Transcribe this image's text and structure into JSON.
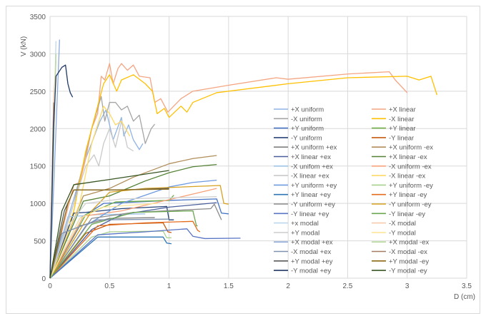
{
  "chart_data": {
    "type": "line",
    "title": "",
    "xlabel": "D (cm)",
    "ylabel": "V (kN)",
    "xlim": [
      0,
      3.5
    ],
    "ylim": [
      0,
      3500
    ],
    "xticks": [
      "0",
      "0.5",
      "1",
      "1.5",
      "2",
      "2.5",
      "3",
      "3.5"
    ],
    "yticks": [
      "0",
      "500",
      "1000",
      "1500",
      "2000",
      "2500",
      "3000",
      "3500"
    ],
    "grid": true,
    "legend_position": "right-inside",
    "series": [
      {
        "name": "+X uniform",
        "color": "#8fb4e3",
        "points": [
          [
            0,
            0
          ],
          [
            0.15,
            800
          ],
          [
            0.3,
            1600
          ],
          [
            0.42,
            2100
          ],
          [
            0.47,
            2250
          ],
          [
            0.53,
            1850
          ],
          [
            0.6,
            2150
          ],
          [
            0.62,
            1900
          ],
          [
            0.66,
            2050
          ],
          [
            0.7,
            1850
          ],
          [
            0.75,
            1720
          ],
          [
            0.78,
            1800
          ]
        ]
      },
      {
        "name": "+X linear",
        "color": "#f4a582",
        "points": [
          [
            0,
            0
          ],
          [
            0.2,
            1250
          ],
          [
            0.25,
            1280
          ],
          [
            0.3,
            1600
          ],
          [
            0.35,
            2000
          ],
          [
            0.4,
            2200
          ],
          [
            0.43,
            2700
          ],
          [
            0.46,
            2650
          ],
          [
            0.5,
            2870
          ],
          [
            0.53,
            2600
          ],
          [
            0.57,
            2800
          ],
          [
            0.6,
            2870
          ],
          [
            0.65,
            2780
          ],
          [
            0.7,
            2850
          ],
          [
            0.75,
            2700
          ],
          [
            0.84,
            2680
          ],
          [
            0.88,
            2350
          ],
          [
            0.93,
            2400
          ],
          [
            0.99,
            2220
          ],
          [
            1.1,
            2400
          ],
          [
            1.2,
            2500
          ],
          [
            1.5,
            2580
          ],
          [
            1.9,
            2680
          ],
          [
            2.0,
            2660
          ],
          [
            2.5,
            2730
          ],
          [
            2.85,
            2760
          ],
          [
            2.9,
            2650
          ],
          [
            3.0,
            2480
          ]
        ]
      },
      {
        "name": "-X uniform",
        "color": "#a5a5a5",
        "points": [
          [
            0,
            0
          ],
          [
            0.2,
            1000
          ],
          [
            0.35,
            2000
          ],
          [
            0.43,
            2430
          ],
          [
            0.46,
            2100
          ],
          [
            0.5,
            2350
          ],
          [
            0.55,
            2350
          ],
          [
            0.6,
            2250
          ],
          [
            0.65,
            2300
          ],
          [
            0.7,
            2100
          ],
          [
            0.75,
            2180
          ],
          [
            0.8,
            1800
          ],
          [
            0.85,
            2000
          ],
          [
            0.88,
            2060
          ]
        ]
      },
      {
        "name": "-X linear",
        "color": "#ffc000",
        "points": [
          [
            0,
            0
          ],
          [
            0.2,
            900
          ],
          [
            0.3,
            1700
          ],
          [
            0.4,
            2300
          ],
          [
            0.45,
            2600
          ],
          [
            0.5,
            2720
          ],
          [
            0.56,
            2500
          ],
          [
            0.6,
            2650
          ],
          [
            0.7,
            2720
          ],
          [
            0.8,
            2600
          ],
          [
            0.86,
            2500
          ],
          [
            0.9,
            2200
          ],
          [
            0.96,
            2270
          ],
          [
            1.0,
            2150
          ],
          [
            1.1,
            2300
          ],
          [
            1.15,
            2220
          ],
          [
            1.2,
            2350
          ],
          [
            1.4,
            2480
          ],
          [
            2.0,
            2600
          ],
          [
            2.5,
            2680
          ],
          [
            3.0,
            2700
          ],
          [
            3.1,
            2650
          ],
          [
            3.2,
            2700
          ],
          [
            3.25,
            2450
          ]
        ]
      },
      {
        "name": "+Y uniform",
        "color": "#4472c4",
        "points": [
          [
            0,
            0
          ],
          [
            0.25,
            800
          ],
          [
            0.45,
            1000
          ],
          [
            0.6,
            1010
          ],
          [
            1.0,
            1040
          ],
          [
            1.4,
            1060
          ],
          [
            1.44,
            870
          ],
          [
            1.5,
            860
          ]
        ]
      },
      {
        "name": "+Y linear",
        "color": "#70ad47",
        "points": [
          [
            0,
            0
          ],
          [
            0.3,
            850
          ],
          [
            0.55,
            1020
          ],
          [
            1.0,
            1040
          ],
          [
            1.04,
            1110
          ]
        ]
      },
      {
        "name": "-Y uniform",
        "color": "#264478",
        "points": [
          [
            0,
            0
          ],
          [
            0.2,
            870
          ],
          [
            0.3,
            880
          ],
          [
            0.6,
            930
          ],
          [
            0.98,
            960
          ],
          [
            1.0,
            780
          ],
          [
            1.04,
            780
          ]
        ]
      },
      {
        "name": "-Y linear",
        "color": "#c55a11",
        "points": [
          [
            0,
            0
          ],
          [
            0.3,
            600
          ],
          [
            0.5,
            720
          ],
          [
            0.95,
            740
          ],
          [
            0.99,
            620
          ],
          [
            1.02,
            610
          ]
        ]
      },
      {
        "name": "+X uniform +ex",
        "color": "#7f7f7f",
        "points": [
          [
            0,
            0
          ],
          [
            0.25,
            700
          ],
          [
            0.5,
            800
          ],
          [
            0.88,
            810
          ]
        ]
      },
      {
        "name": "+X uniform -ex",
        "color": "#b08e5a",
        "points": [
          [
            0,
            0
          ],
          [
            0.28,
            1100
          ],
          [
            0.5,
            1200
          ],
          [
            0.7,
            1350
          ],
          [
            1.0,
            1530
          ],
          [
            1.2,
            1600
          ],
          [
            1.4,
            1640
          ]
        ]
      },
      {
        "name": "+X linear +ex",
        "color": "#4a5f9d",
        "points": [
          [
            0,
            0
          ],
          [
            0.35,
            650
          ],
          [
            0.6,
            850
          ],
          [
            1.0,
            950
          ],
          [
            1.4,
            1010
          ]
        ]
      },
      {
        "name": "+X linear -ex",
        "color": "#548235",
        "points": [
          [
            0,
            0
          ],
          [
            0.28,
            1030
          ],
          [
            0.5,
            1100
          ],
          [
            0.8,
            1300
          ],
          [
            1.0,
            1410
          ],
          [
            1.2,
            1490
          ],
          [
            1.4,
            1520
          ]
        ]
      },
      {
        "name": "-X unifom +ex",
        "color": "#9dc3e6",
        "points": [
          [
            0,
            0
          ],
          [
            0.15,
            820
          ],
          [
            0.4,
            850
          ],
          [
            0.8,
            860
          ]
        ]
      },
      {
        "name": "-X uniform -ex",
        "color": "#f8a27a",
        "points": [
          [
            0,
            0
          ],
          [
            0.28,
            830
          ],
          [
            0.6,
            900
          ],
          [
            1.0,
            1050
          ],
          [
            1.4,
            1200
          ]
        ]
      },
      {
        "name": "-X linear +ex",
        "color": "#c9c9c9",
        "points": [
          [
            0,
            0
          ],
          [
            0.2,
            1000
          ],
          [
            0.3,
            1500
          ],
          [
            0.37,
            1650
          ],
          [
            0.41,
            1500
          ],
          [
            0.45,
            1800
          ],
          [
            0.5,
            2000
          ],
          [
            0.55,
            1750
          ],
          [
            0.6,
            2100
          ],
          [
            0.65,
            1750
          ],
          [
            0.7,
            1700
          ]
        ]
      },
      {
        "name": "-X linear -ex",
        "color": "#ffd966",
        "points": [
          [
            0,
            0
          ],
          [
            0.25,
            1000
          ],
          [
            0.35,
            1800
          ],
          [
            0.45,
            2300
          ],
          [
            0.5,
            2200
          ],
          [
            0.55,
            2050
          ],
          [
            0.6,
            2100
          ],
          [
            0.67,
            1900
          ]
        ]
      },
      {
        "name": "+Y uniform +ey",
        "color": "#6f9be0",
        "points": [
          [
            0,
            0
          ],
          [
            0.3,
            700
          ],
          [
            0.6,
            1000
          ],
          [
            1.0,
            1220
          ],
          [
            1.2,
            1280
          ],
          [
            1.4,
            1310
          ]
        ]
      },
      {
        "name": "+Y uniform -ey",
        "color": "#a9d18e",
        "points": [
          [
            0,
            0
          ],
          [
            0.35,
            550
          ],
          [
            0.5,
            620
          ],
          [
            0.95,
            630
          ],
          [
            0.98,
            540
          ],
          [
            1.02,
            540
          ]
        ]
      },
      {
        "name": "+Y linear +ey",
        "color": "#2e75b6",
        "points": [
          [
            0,
            0
          ],
          [
            0.4,
            550
          ],
          [
            0.95,
            550
          ],
          [
            0.98,
            470
          ],
          [
            1.02,
            460
          ]
        ]
      },
      {
        "name": "+Y linear -ey",
        "color": "#e46c1f",
        "points": [
          [
            0,
            0
          ],
          [
            0.4,
            700
          ],
          [
            0.8,
            740
          ],
          [
            1.2,
            760
          ],
          [
            1.24,
            640
          ],
          [
            1.26,
            620
          ]
        ]
      },
      {
        "name": "-Y uniform +ey",
        "color": "#8c8c8c",
        "points": [
          [
            0,
            0
          ],
          [
            0.35,
            800
          ],
          [
            0.7,
            880
          ],
          [
            1.35,
            930
          ],
          [
            1.38,
            990
          ],
          [
            1.44,
            780
          ]
        ]
      },
      {
        "name": "-Y uniform -ey",
        "color": "#d6a220",
        "points": [
          [
            0,
            0
          ],
          [
            0.35,
            900
          ],
          [
            0.5,
            1150
          ],
          [
            0.8,
            1200
          ],
          [
            1.43,
            1240
          ],
          [
            1.46,
            1000
          ],
          [
            1.5,
            990
          ]
        ]
      },
      {
        "name": "-Y linear +ey",
        "color": "#5874c4",
        "points": [
          [
            0,
            0
          ],
          [
            0.4,
            580
          ],
          [
            0.8,
            620
          ],
          [
            1.15,
            660
          ],
          [
            1.2,
            560
          ],
          [
            1.3,
            530
          ],
          [
            1.6,
            535
          ]
        ]
      },
      {
        "name": "-Y linear -ey",
        "color": "#6aa84f",
        "points": [
          [
            0,
            0
          ],
          [
            0.35,
            720
          ],
          [
            0.7,
            880
          ],
          [
            1.2,
            900
          ],
          [
            1.23,
            700
          ],
          [
            1.24,
            700
          ]
        ]
      },
      {
        "name": "+x modal",
        "color": "#bdd7ee",
        "points": [
          [
            0,
            0
          ],
          [
            0.05,
            3170
          ]
        ]
      },
      {
        "name": "-X modal",
        "color": "#f8cbad",
        "points": [
          [
            0,
            0
          ],
          [
            0.03,
            2400
          ],
          [
            0.05,
            2900
          ]
        ]
      },
      {
        "name": "+Y modal",
        "color": "#d0d0d0",
        "points": [
          [
            0,
            0
          ],
          [
            0.15,
            700
          ],
          [
            0.3,
            1000
          ],
          [
            0.6,
            1060
          ],
          [
            1.4,
            1090
          ]
        ]
      },
      {
        "name": "-Y modal",
        "color": "#ffe699",
        "points": [
          [
            0,
            0
          ],
          [
            0.25,
            800
          ],
          [
            0.45,
            950
          ],
          [
            0.9,
            1000
          ]
        ]
      },
      {
        "name": "+X modal +ex",
        "color": "#8eaadb",
        "points": [
          [
            0,
            0
          ],
          [
            0.08,
            3190
          ]
        ]
      },
      {
        "name": "+X modal -ex",
        "color": "#b5d99c",
        "points": [
          [
            0,
            0
          ],
          [
            0.05,
            3000
          ]
        ]
      },
      {
        "name": "-X modal +ex",
        "color": "#7e91b0",
        "points": [
          [
            0,
            0
          ],
          [
            0.1,
            600
          ],
          [
            0.4,
            780
          ],
          [
            1.0,
            790
          ]
        ]
      },
      {
        "name": "-X modal -ex",
        "color": "#a57c62",
        "points": [
          [
            0,
            0
          ],
          [
            0.03,
            2350
          ]
        ]
      },
      {
        "name": "+Y modal +ey",
        "color": "#595959",
        "points": [
          [
            0,
            0
          ],
          [
            0.12,
            900
          ],
          [
            0.2,
            1180
          ],
          [
            0.6,
            1180
          ],
          [
            1.0,
            1200
          ]
        ]
      },
      {
        "name": "+Y modal -ey",
        "color": "#8b6914",
        "points": [
          [
            0,
            0
          ],
          [
            0.15,
            1000
          ],
          [
            0.2,
            1180
          ],
          [
            0.5,
            1180
          ],
          [
            1.0,
            1190
          ]
        ]
      },
      {
        "name": "-Y modal +ey",
        "color": "#203864",
        "points": [
          [
            0,
            0
          ],
          [
            0.03,
            2000
          ],
          [
            0.05,
            2700
          ],
          [
            0.1,
            2820
          ],
          [
            0.13,
            2850
          ],
          [
            0.15,
            2600
          ],
          [
            0.17,
            2480
          ],
          [
            0.19,
            2420
          ]
        ]
      },
      {
        "name": "-Y modal -ey",
        "color": "#375623",
        "points": [
          [
            0,
            0
          ],
          [
            0.1,
            900
          ],
          [
            0.2,
            1250
          ],
          [
            0.5,
            1320
          ],
          [
            1.0,
            1440
          ]
        ]
      }
    ]
  }
}
